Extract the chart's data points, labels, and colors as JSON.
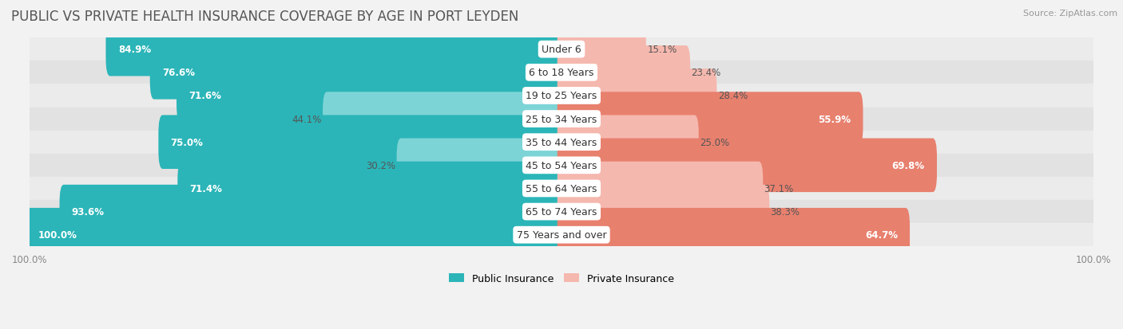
{
  "title": "PUBLIC VS PRIVATE HEALTH INSURANCE COVERAGE BY AGE IN PORT LEYDEN",
  "source": "Source: ZipAtlas.com",
  "categories": [
    "Under 6",
    "6 to 18 Years",
    "19 to 25 Years",
    "25 to 34 Years",
    "35 to 44 Years",
    "45 to 54 Years",
    "55 to 64 Years",
    "65 to 74 Years",
    "75 Years and over"
  ],
  "public_values": [
    84.9,
    76.6,
    71.6,
    44.1,
    75.0,
    30.2,
    71.4,
    93.6,
    100.0
  ],
  "private_values": [
    15.1,
    23.4,
    28.4,
    55.9,
    25.0,
    69.8,
    37.1,
    38.3,
    64.7
  ],
  "public_color_dark": "#2BB5B8",
  "public_color_light": "#7DD4D6",
  "private_color_light": "#F5B8AE",
  "private_color_dark": "#E8806E",
  "axis_max": 100.0,
  "bg_color": "#F2F2F2",
  "row_color_odd": "#EBEBEB",
  "row_color_even": "#E2E2E2",
  "title_fontsize": 12,
  "label_fontsize": 8.5,
  "source_fontsize": 8,
  "legend_fontsize": 9,
  "cat_label_fontsize": 9
}
